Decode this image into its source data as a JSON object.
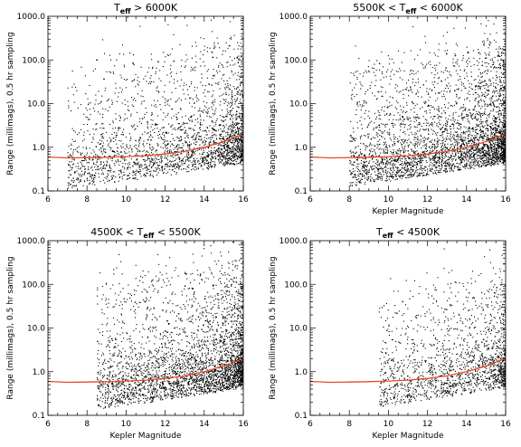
{
  "chart_data": [
    {
      "type": "scatter",
      "title": "T_eff > 6000K",
      "title_parts": [
        "T",
        "eff",
        " > 6000K"
      ],
      "xlabel": "",
      "ylabel": "Range (millimags), 0.5 hr sampling",
      "xlim": [
        6,
        16
      ],
      "ylim": [
        0.1,
        1000
      ],
      "yscale": "log",
      "xticks": [
        "6",
        "8",
        "10",
        "12",
        "14",
        "16"
      ],
      "yticks": [
        "0.1",
        "1.0",
        "10.0",
        "100.0",
        "1000.0"
      ],
      "grid": false,
      "series": [
        {
          "color": "#000000",
          "marker": "dot",
          "density": {
            "kp_min": 7.0,
            "spread_upper_dex": 2.6,
            "count": 2600
          }
        },
        {
          "color": "#e8472e",
          "marker": "line",
          "x": [
            6,
            7,
            8,
            9,
            10,
            11,
            12,
            13,
            14,
            15,
            16
          ],
          "y": [
            0.6,
            0.57,
            0.58,
            0.59,
            0.61,
            0.64,
            0.7,
            0.8,
            1.0,
            1.35,
            2.0
          ]
        }
      ]
    },
    {
      "type": "scatter",
      "title": "5500K < T_eff < 6000K",
      "title_parts": [
        "5500K < T",
        "eff",
        " < 6000K"
      ],
      "xlabel": "Kepler Magnitude",
      "ylabel": "Range (millimags), 0.5 hr sampling",
      "xlim": [
        6,
        16
      ],
      "ylim": [
        0.1,
        1000
      ],
      "yscale": "log",
      "xticks": [
        "6",
        "8",
        "10",
        "12",
        "14",
        "16"
      ],
      "yticks": [
        "0.1",
        "1.0",
        "10.0",
        "100.0",
        "1000.0"
      ],
      "grid": false,
      "series": [
        {
          "color": "#000000",
          "marker": "dot",
          "density": {
            "kp_min": 8.0,
            "spread_upper_dex": 2.5,
            "count": 3600
          }
        },
        {
          "color": "#e8472e",
          "marker": "line",
          "x": [
            6,
            7,
            8,
            9,
            10,
            11,
            12,
            13,
            14,
            15,
            16
          ],
          "y": [
            0.6,
            0.57,
            0.58,
            0.59,
            0.61,
            0.64,
            0.7,
            0.8,
            1.0,
            1.35,
            2.0
          ]
        }
      ]
    },
    {
      "type": "scatter",
      "title": "4500K < T_eff < 5500K",
      "title_parts": [
        "4500K < T",
        "eff",
        " < 5500K"
      ],
      "xlabel": "Kepler Magnitude",
      "ylabel": "Range (millimags), 0.5 hr sampling",
      "xlim": [
        6,
        16
      ],
      "ylim": [
        0.1,
        1000
      ],
      "yscale": "log",
      "xticks": [
        "6",
        "8",
        "10",
        "12",
        "14",
        "16"
      ],
      "yticks": [
        "0.1",
        "1.0",
        "10.0",
        "100.0",
        "1000.0"
      ],
      "grid": false,
      "series": [
        {
          "color": "#000000",
          "marker": "dot",
          "density": {
            "kp_min": 8.5,
            "spread_upper_dex": 2.6,
            "count": 3400
          }
        },
        {
          "color": "#e8472e",
          "marker": "line",
          "x": [
            6,
            7,
            8,
            9,
            10,
            11,
            12,
            13,
            14,
            15,
            16
          ],
          "y": [
            0.6,
            0.57,
            0.58,
            0.59,
            0.61,
            0.64,
            0.7,
            0.8,
            1.0,
            1.35,
            2.0
          ]
        }
      ]
    },
    {
      "type": "scatter",
      "title": "T_eff < 4500K",
      "title_parts": [
        "T",
        "eff",
        " < 4500K"
      ],
      "xlabel": "Kepler Magnitude",
      "ylabel": "Range (millimags), 0.5 hr sampling",
      "xlim": [
        6,
        16
      ],
      "ylim": [
        0.1,
        1000
      ],
      "yscale": "log",
      "xticks": [
        "6",
        "8",
        "10",
        "12",
        "14",
        "16"
      ],
      "yticks": [
        "0.1",
        "1.0",
        "10.0",
        "100.0",
        "1000.0"
      ],
      "grid": false,
      "series": [
        {
          "color": "#000000",
          "marker": "dot",
          "density": {
            "kp_min": 9.5,
            "spread_upper_dex": 2.3,
            "count": 1700
          }
        },
        {
          "color": "#e8472e",
          "marker": "line",
          "x": [
            6,
            7,
            8,
            9,
            10,
            11,
            12,
            13,
            14,
            15,
            16
          ],
          "y": [
            0.6,
            0.57,
            0.58,
            0.59,
            0.61,
            0.64,
            0.7,
            0.8,
            1.0,
            1.35,
            2.0
          ]
        }
      ]
    }
  ]
}
